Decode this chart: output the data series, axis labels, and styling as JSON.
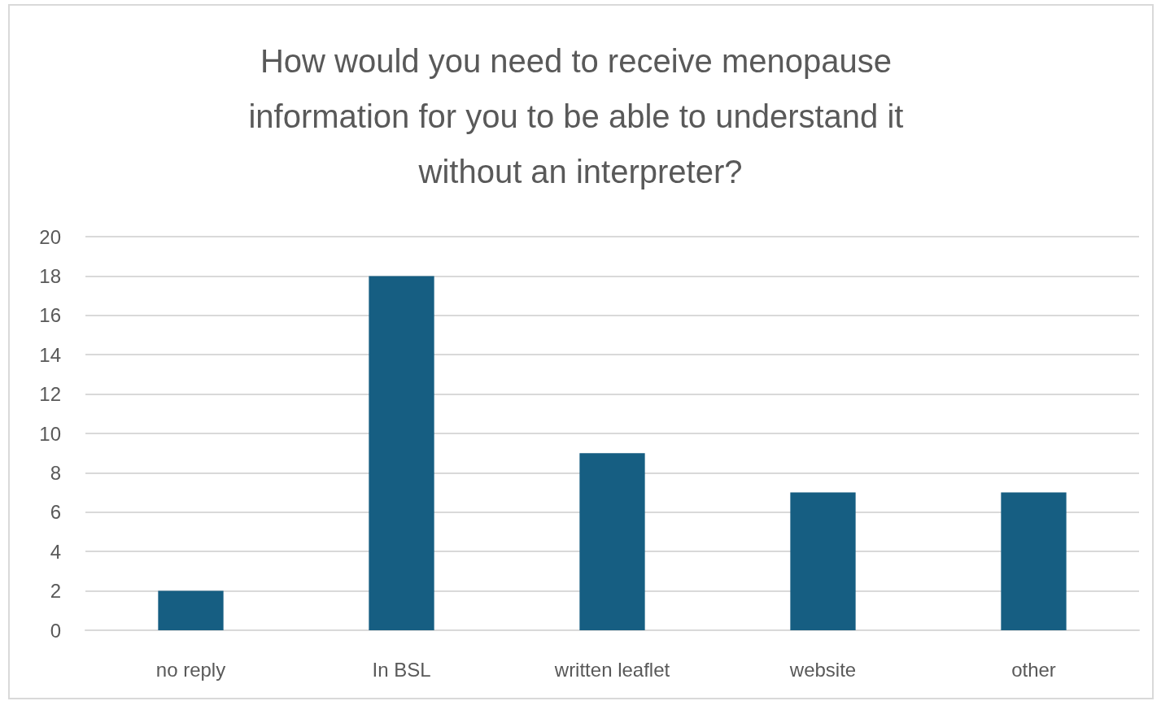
{
  "chart_data": {
    "type": "bar",
    "title": "How would you need to receive menopause information for you to be able to understand it without an interpreter?",
    "categories": [
      "no reply",
      "In BSL",
      "written leaflet",
      "website",
      "other"
    ],
    "values": [
      2,
      18,
      9,
      7,
      7
    ],
    "color": "#165e82",
    "ylim": [
      0,
      20
    ],
    "yticks": [
      0,
      2,
      4,
      6,
      8,
      10,
      12,
      14,
      16,
      18,
      20
    ],
    "grid": "y"
  }
}
